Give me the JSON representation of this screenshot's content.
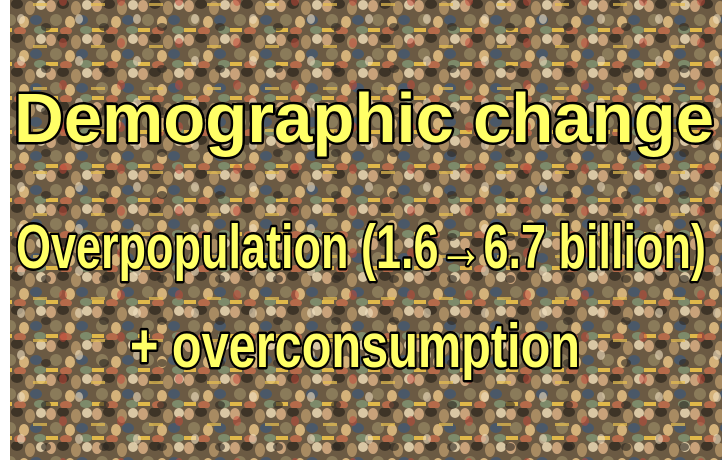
{
  "slide": {
    "title": "Demographic change",
    "lines": [
      "Overpopulation (1.6→6.7 billion)",
      "+ overconsumption"
    ]
  }
}
